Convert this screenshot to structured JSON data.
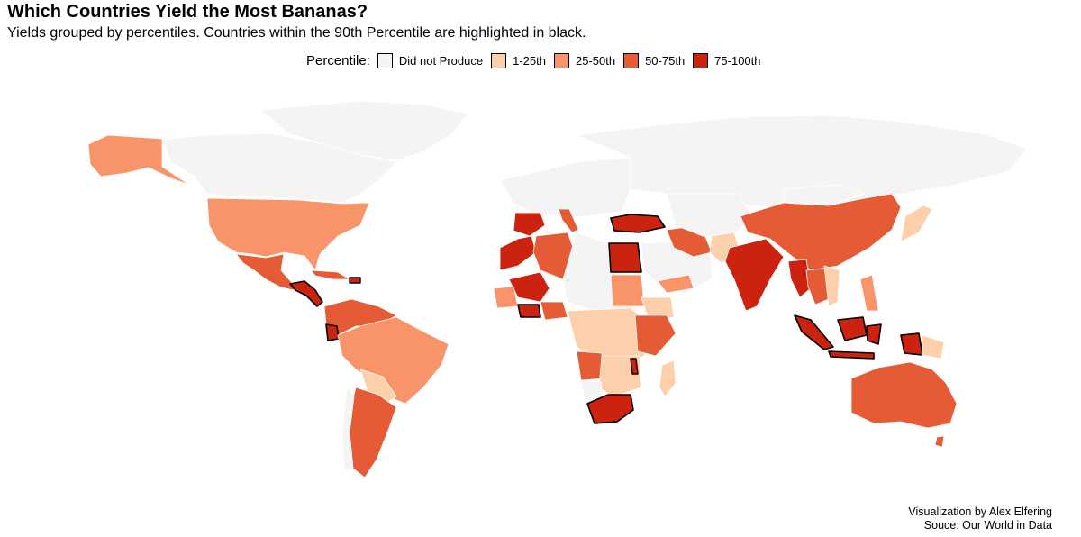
{
  "title": "Which Countries Yield the Most Bananas?",
  "subtitle": "Yields grouped by percentiles. Countries within the 90th Percentile are highlighted in black.",
  "legend": {
    "title": "Percentile:",
    "items": [
      {
        "label": "Did not Produce",
        "color": "#f4f4f4"
      },
      {
        "label": "1-25th",
        "color": "#fdcfaa"
      },
      {
        "label": "25-50th",
        "color": "#f9936a"
      },
      {
        "label": "50-75th",
        "color": "#e55b35"
      },
      {
        "label": "75-100th",
        "color": "#cc2310"
      }
    ]
  },
  "colors": {
    "none": "#f4f4f4",
    "p1": "#fdcfaa",
    "p2": "#f9936a",
    "p3": "#e55b35",
    "p4": "#cc2310",
    "highlight_border": "#000000"
  },
  "credits": {
    "line1": "Visualization by Alex Elfering",
    "line2": "Souce: Our World in Data"
  }
}
